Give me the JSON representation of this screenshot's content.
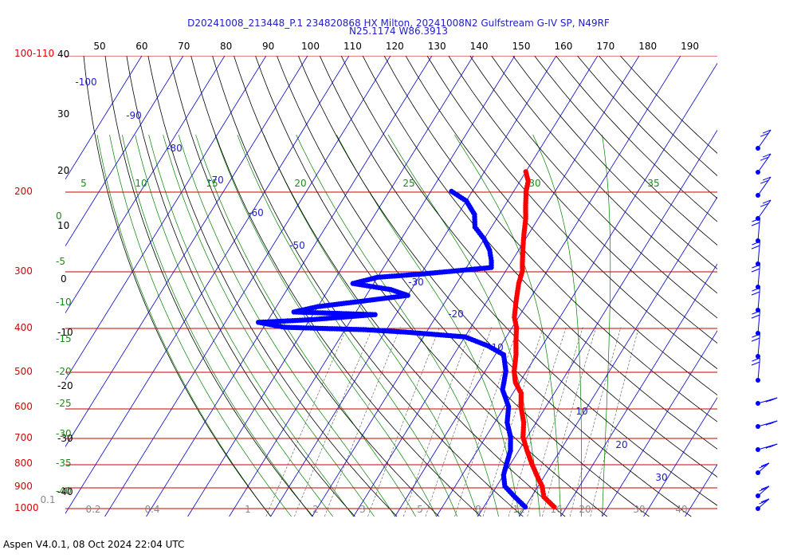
{
  "title_line1": "D20241008_213448_P.1 234820868 HX Milton, 20241008N2 Gulfstream G-IV SP, N49RF",
  "title_line2": "N25.1174 W86.3913",
  "footer": "Aspen V4.0.1, 08 Oct 2024  22:04 UTC",
  "colors": {
    "temperature": "#ff0000",
    "dewpoint": "#0000ff",
    "isobar": "#cc0000",
    "isotherm": "#0000cc",
    "dry_adiabat": "#000000",
    "moist_adiabat": "#008000",
    "mixing_ratio": "#555555"
  },
  "chart_data": {
    "type": "scatter",
    "chart_kind": "skew-T log-P diagram",
    "pressure_ticks": [
      "100-110",
      "200",
      "300",
      "400",
      "500",
      "600",
      "700",
      "800",
      "900",
      "1000"
    ],
    "pressure_values": [
      100,
      200,
      300,
      400,
      500,
      600,
      700,
      800,
      900,
      1000
    ],
    "altitude_ticks": [
      "40",
      "30",
      "20",
      "10",
      "0",
      "-10",
      "-20",
      "-30",
      "-40"
    ],
    "top_axis_ticks": [
      "50",
      "60",
      "70",
      "80",
      "90",
      "100",
      "110",
      "120",
      "130",
      "140",
      "150",
      "160",
      "170",
      "180",
      "190"
    ],
    "isotherm_labels": [
      "-100",
      "-90",
      "-80",
      "-70",
      "-60",
      "-50",
      "-30",
      "-20",
      "-10",
      "10",
      "20",
      "30"
    ],
    "moist_adiabat_labels": [
      "5",
      "10",
      "15",
      "20",
      "25",
      "30",
      "35"
    ],
    "left_green_labels": [
      "0",
      "-5",
      "-10",
      "-15",
      "-20",
      "-25",
      "-30",
      "-35",
      "-40"
    ],
    "mixing_ratio_labels": [
      "0.1",
      "0.2",
      "0.4",
      "1",
      "2",
      "3",
      "5",
      "8",
      "12",
      "16",
      "20",
      "30",
      "40"
    ],
    "temperature_series": [
      {
        "p": 181,
        "t": -30
      },
      {
        "p": 190,
        "t": -28
      },
      {
        "p": 200,
        "t": -27
      },
      {
        "p": 215,
        "t": -25
      },
      {
        "p": 230,
        "t": -23
      },
      {
        "p": 250,
        "t": -21
      },
      {
        "p": 270,
        "t": -19
      },
      {
        "p": 290,
        "t": -17
      },
      {
        "p": 300,
        "t": -16
      },
      {
        "p": 320,
        "t": -15
      },
      {
        "p": 350,
        "t": -13
      },
      {
        "p": 380,
        "t": -11
      },
      {
        "p": 400,
        "t": -9
      },
      {
        "p": 430,
        "t": -7
      },
      {
        "p": 460,
        "t": -5
      },
      {
        "p": 500,
        "t": -3
      },
      {
        "p": 530,
        "t": -1
      },
      {
        "p": 560,
        "t": 2
      },
      {
        "p": 600,
        "t": 4
      },
      {
        "p": 650,
        "t": 7
      },
      {
        "p": 700,
        "t": 9
      },
      {
        "p": 750,
        "t": 12
      },
      {
        "p": 800,
        "t": 15
      },
      {
        "p": 850,
        "t": 18
      },
      {
        "p": 900,
        "t": 21
      },
      {
        "p": 950,
        "t": 23
      },
      {
        "p": 1000,
        "t": 27
      }
    ],
    "dewpoint_series": [
      {
        "p": 200,
        "t": -45
      },
      {
        "p": 210,
        "t": -40
      },
      {
        "p": 225,
        "t": -36
      },
      {
        "p": 240,
        "t": -34
      },
      {
        "p": 255,
        "t": -30
      },
      {
        "p": 270,
        "t": -27
      },
      {
        "p": 285,
        "t": -25
      },
      {
        "p": 295,
        "t": -24
      },
      {
        "p": 305,
        "t": -40
      },
      {
        "p": 310,
        "t": -50
      },
      {
        "p": 320,
        "t": -55
      },
      {
        "p": 330,
        "t": -45
      },
      {
        "p": 340,
        "t": -40
      },
      {
        "p": 350,
        "t": -50
      },
      {
        "p": 360,
        "t": -60
      },
      {
        "p": 370,
        "t": -65
      },
      {
        "p": 375,
        "t": -45
      },
      {
        "p": 385,
        "t": -60
      },
      {
        "p": 390,
        "t": -72
      },
      {
        "p": 400,
        "t": -65
      },
      {
        "p": 405,
        "t": -45
      },
      {
        "p": 410,
        "t": -35
      },
      {
        "p": 420,
        "t": -20
      },
      {
        "p": 440,
        "t": -13
      },
      {
        "p": 460,
        "t": -8
      },
      {
        "p": 500,
        "t": -5
      },
      {
        "p": 550,
        "t": -3
      },
      {
        "p": 600,
        "t": 1
      },
      {
        "p": 650,
        "t": 3
      },
      {
        "p": 700,
        "t": 6
      },
      {
        "p": 750,
        "t": 8
      },
      {
        "p": 800,
        "t": 9
      },
      {
        "p": 850,
        "t": 10
      },
      {
        "p": 900,
        "t": 12
      },
      {
        "p": 950,
        "t": 16
      },
      {
        "p": 1000,
        "t": 20
      }
    ],
    "wind_barbs": [
      {
        "p": 180
      },
      {
        "p": 200
      },
      {
        "p": 220
      },
      {
        "p": 245
      },
      {
        "p": 270
      },
      {
        "p": 300
      },
      {
        "p": 330
      },
      {
        "p": 365
      },
      {
        "p": 400
      },
      {
        "p": 440
      },
      {
        "p": 480
      },
      {
        "p": 520
      },
      {
        "p": 580
      },
      {
        "p": 650
      },
      {
        "p": 730
      },
      {
        "p": 810
      },
      {
        "p": 900
      },
      {
        "p": 980
      }
    ]
  }
}
